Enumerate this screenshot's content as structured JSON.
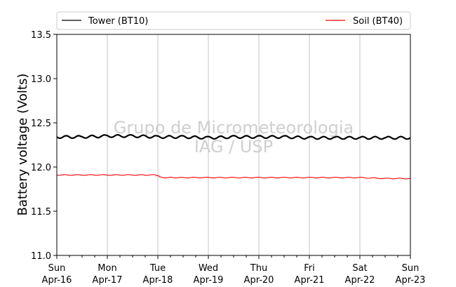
{
  "chart_data": {
    "type": "line",
    "ylabel": "Battery voltage (Volts)",
    "ylim": [
      11.0,
      13.5
    ],
    "yticks": [
      "11.0",
      "11.5",
      "12.0",
      "12.5",
      "13.0",
      "13.5"
    ],
    "xlim": [
      "2017-04-16",
      "2017-04-23"
    ],
    "xticks": [
      {
        "day": "Sun",
        "date": "Apr-16"
      },
      {
        "day": "Mon",
        "date": "Apr-17"
      },
      {
        "day": "Tue",
        "date": "Apr-18"
      },
      {
        "day": "Wed",
        "date": "Apr-19"
      },
      {
        "day": "Thu",
        "date": "Apr-20"
      },
      {
        "day": "Fri",
        "date": "Apr-21"
      },
      {
        "day": "Sat",
        "date": "Apr-22"
      },
      {
        "day": "Sun",
        "date": "Apr-23"
      }
    ],
    "grid": "vertical",
    "legend_position": "top",
    "watermark": [
      "Grupo de Micrometeorologia",
      "IAG / USP"
    ],
    "series": [
      {
        "name": "Tower (BT10)",
        "color": "#000000",
        "x": [
          "2017-04-16 00:00",
          "2017-04-16 12:00",
          "2017-04-17 00:00",
          "2017-04-17 12:00",
          "2017-04-18 00:00",
          "2017-04-18 12:00",
          "2017-04-19 00:00",
          "2017-04-19 12:00",
          "2017-04-20 00:00",
          "2017-04-20 12:00",
          "2017-04-21 00:00",
          "2017-04-21 12:00",
          "2017-04-22 00:00",
          "2017-04-22 12:00",
          "2017-04-23 00:00"
        ],
        "values": [
          12.34,
          12.34,
          12.35,
          12.35,
          12.34,
          12.34,
          12.33,
          12.34,
          12.34,
          12.34,
          12.33,
          12.33,
          12.33,
          12.33,
          12.33
        ]
      },
      {
        "name": "Soil (BT40)",
        "color": "#ff0000",
        "x": [
          "2017-04-16 00:00",
          "2017-04-16 12:00",
          "2017-04-17 00:00",
          "2017-04-17 12:00",
          "2017-04-17 23:00",
          "2017-04-18 02:00",
          "2017-04-18 12:00",
          "2017-04-19 00:00",
          "2017-04-19 12:00",
          "2017-04-20 00:00",
          "2017-04-20 12:00",
          "2017-04-21 00:00",
          "2017-04-21 12:00",
          "2017-04-22 00:00",
          "2017-04-22 12:00",
          "2017-04-23 00:00"
        ],
        "values": [
          11.91,
          11.91,
          11.91,
          11.91,
          11.91,
          11.88,
          11.88,
          11.88,
          11.88,
          11.88,
          11.88,
          11.88,
          11.88,
          11.88,
          11.87,
          11.87
        ]
      }
    ]
  }
}
